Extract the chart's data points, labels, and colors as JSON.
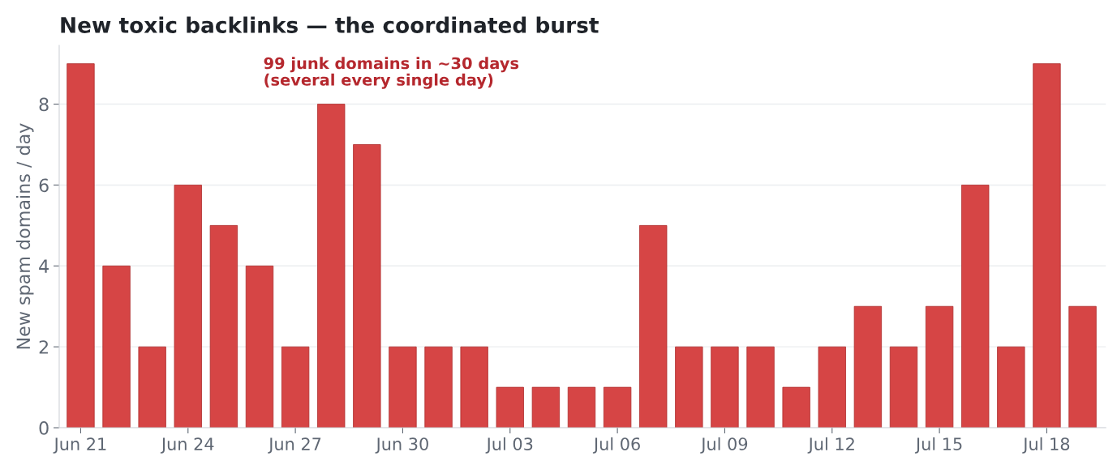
{
  "chart_data": {
    "type": "bar",
    "title": "New toxic backlinks — the coordinated burst",
    "ylabel": "New spam domains / day",
    "annotations": [
      "99 junk domains in ~30 days\n(several every single day)"
    ],
    "categories": [
      "Jun 21",
      null,
      null,
      "Jun 24",
      null,
      null,
      "Jun 27",
      null,
      null,
      "Jun 30",
      null,
      null,
      "Jul 03",
      null,
      null,
      "Jul 06",
      null,
      null,
      "Jul 09",
      null,
      null,
      "Jul 12",
      null,
      null,
      "Jul 15",
      null,
      null,
      "Jul 18",
      null
    ],
    "values": [
      9,
      4,
      2,
      6,
      5,
      4,
      2,
      8,
      7,
      2,
      2,
      2,
      1,
      1,
      1,
      1,
      5,
      2,
      2,
      2,
      1,
      2,
      3,
      2,
      3,
      6,
      2,
      9,
      3
    ],
    "color": "#d64545",
    "ylim": [
      0,
      9.45
    ],
    "yticks": [
      0,
      2,
      4,
      6,
      8
    ],
    "grid": "y"
  }
}
